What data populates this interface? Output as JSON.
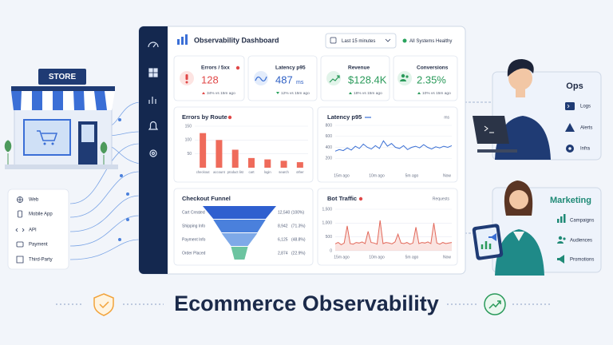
{
  "store": {
    "sign": "STORE"
  },
  "channels": [
    "Web",
    "Mobile App",
    "API",
    "Payment",
    "Third-Party"
  ],
  "dashboard": {
    "header": {
      "title": "Observability Dashboard",
      "time_range": "Last 15 minutes",
      "status": "All Systems Healthy"
    },
    "kpis": [
      {
        "label": "Errors / 5xx",
        "value": "128",
        "delta": "34% vs 15m ago"
      },
      {
        "label": "Latency p95",
        "value": "487",
        "unit": "ms",
        "delta": "12% vs 15m ago"
      },
      {
        "label": "Revenue",
        "value": "$128.4K",
        "delta": "18% vs 15m ago"
      },
      {
        "label": "Conversions",
        "value": "2.35%",
        "delta": "10% vs 15m ago"
      }
    ],
    "errors_by_route": {
      "title": "Errors by Route",
      "categories": [
        "checkout",
        "account",
        "product list",
        "cart",
        "login",
        "search",
        "other"
      ],
      "values": [
        125,
        100,
        65,
        35,
        30,
        25,
        20
      ],
      "color": "#ef6b5b",
      "ylim": [
        0,
        150
      ],
      "yticks": [
        50,
        100,
        150
      ]
    },
    "latency": {
      "title": "Latency p95",
      "unit": "ms",
      "values": [
        330,
        360,
        340,
        390,
        350,
        420,
        380,
        460,
        400,
        370,
        430,
        380,
        520,
        420,
        470,
        400,
        380,
        430,
        360,
        400,
        420,
        390,
        450,
        400,
        370,
        410,
        390,
        420,
        400,
        430
      ],
      "color": "#3a6fd4",
      "ylim": [
        0,
        800
      ],
      "yticks": [
        200,
        400,
        600,
        800
      ],
      "x_labels": [
        "15m ago",
        "10m ago",
        "5m ago",
        "Now"
      ]
    },
    "checkout_funnel": {
      "title": "Checkout Funnel",
      "steps": [
        {
          "name": "Cart Created",
          "count": 12540,
          "count_label": "12,540",
          "share": "(100%)",
          "color": "#2f5fcf"
        },
        {
          "name": "Shipping Info",
          "count": 8942,
          "count_label": "8,942",
          "share": "(71.3%)",
          "color": "#4a80dc"
        },
        {
          "name": "Payment Info",
          "count": 6125,
          "count_label": "6,125",
          "share": "(48.8%)",
          "color": "#7ea9e8"
        },
        {
          "name": "Order Placed",
          "count": 2874,
          "count_label": "2,874",
          "share": "(22.9%)",
          "color": "#6cc4a0"
        }
      ]
    },
    "bot_traffic": {
      "title": "Bot Traffic",
      "unit": "Requests",
      "values": [
        250,
        300,
        220,
        280,
        900,
        260,
        240,
        300,
        280,
        320,
        260,
        700,
        300,
        280,
        240,
        1100,
        260,
        300,
        280,
        250,
        320,
        600,
        280,
        260,
        300,
        240,
        280,
        850,
        260,
        300,
        280,
        320,
        260,
        1000,
        280,
        240,
        300,
        260,
        280,
        300
      ],
      "color": "#e2685a",
      "ylim": [
        0,
        1500
      ],
      "yticks": [
        0,
        500,
        {
          "value": 1000,
          "label": "1,000"
        },
        {
          "value": 1500,
          "label": "1,500"
        }
      ],
      "x_labels": [
        "15m ago",
        "10m ago",
        "5m ago",
        "Now"
      ]
    }
  },
  "ops": {
    "title": "Ops",
    "items": [
      "Logs",
      "Alerts",
      "Infra"
    ]
  },
  "marketing": {
    "title": "Marketing",
    "items": [
      "Campaigns",
      "Audiences",
      "Promotions"
    ]
  },
  "footer": {
    "title": "Ecommerce Observability"
  }
}
